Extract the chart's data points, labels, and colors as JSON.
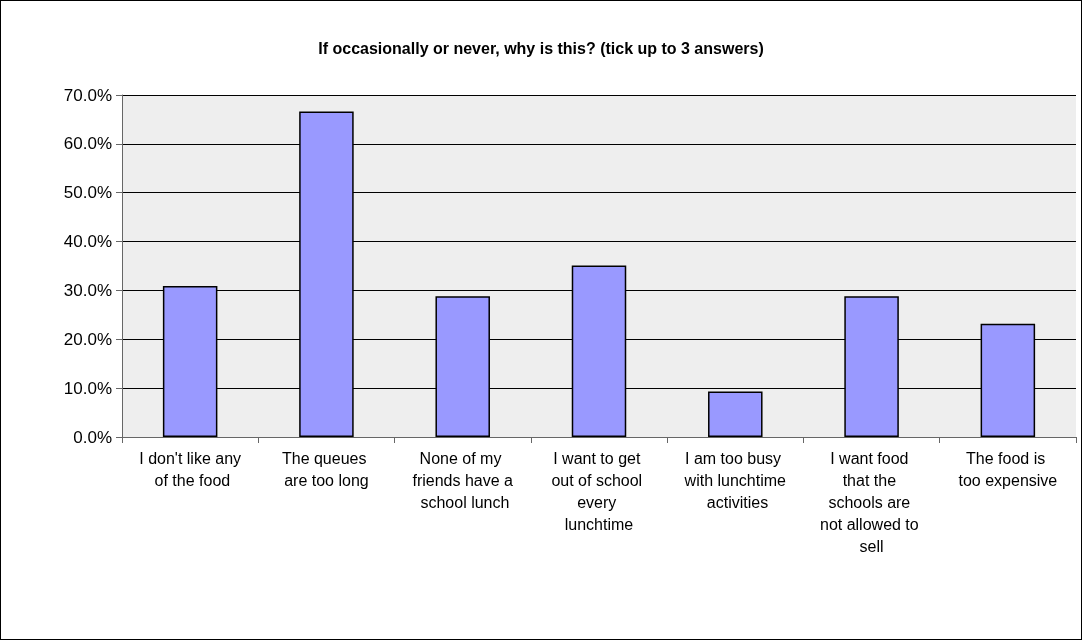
{
  "chart_data": {
    "type": "bar",
    "title": "If occasionally or never, why is this? (tick up to 3 answers)",
    "categories": [
      "I don't like any of the food",
      "The queues are too long",
      "None of my friends have a school lunch",
      "I want to get out of school every lunchtime",
      "I am too busy with lunchtime activities",
      "I want food that the schools are not allowed to sell",
      "The food is too expensive"
    ],
    "values": [
      30.9,
      66.6,
      28.8,
      35.1,
      9.3,
      28.8,
      23.2
    ],
    "color": "#9999ff",
    "ylim": [
      0,
      70
    ],
    "yticks": [
      {
        "value": 0,
        "label": "0.0%"
      },
      {
        "value": 10,
        "label": "10.0%"
      },
      {
        "value": 20,
        "label": "20.0%"
      },
      {
        "value": 30,
        "label": "30.0%"
      },
      {
        "value": 40,
        "label": "40.0%"
      },
      {
        "value": 50,
        "label": "50.0%"
      },
      {
        "value": 60,
        "label": "60.0%"
      },
      {
        "value": 70,
        "label": "70.0%"
      }
    ],
    "grid": "y"
  }
}
